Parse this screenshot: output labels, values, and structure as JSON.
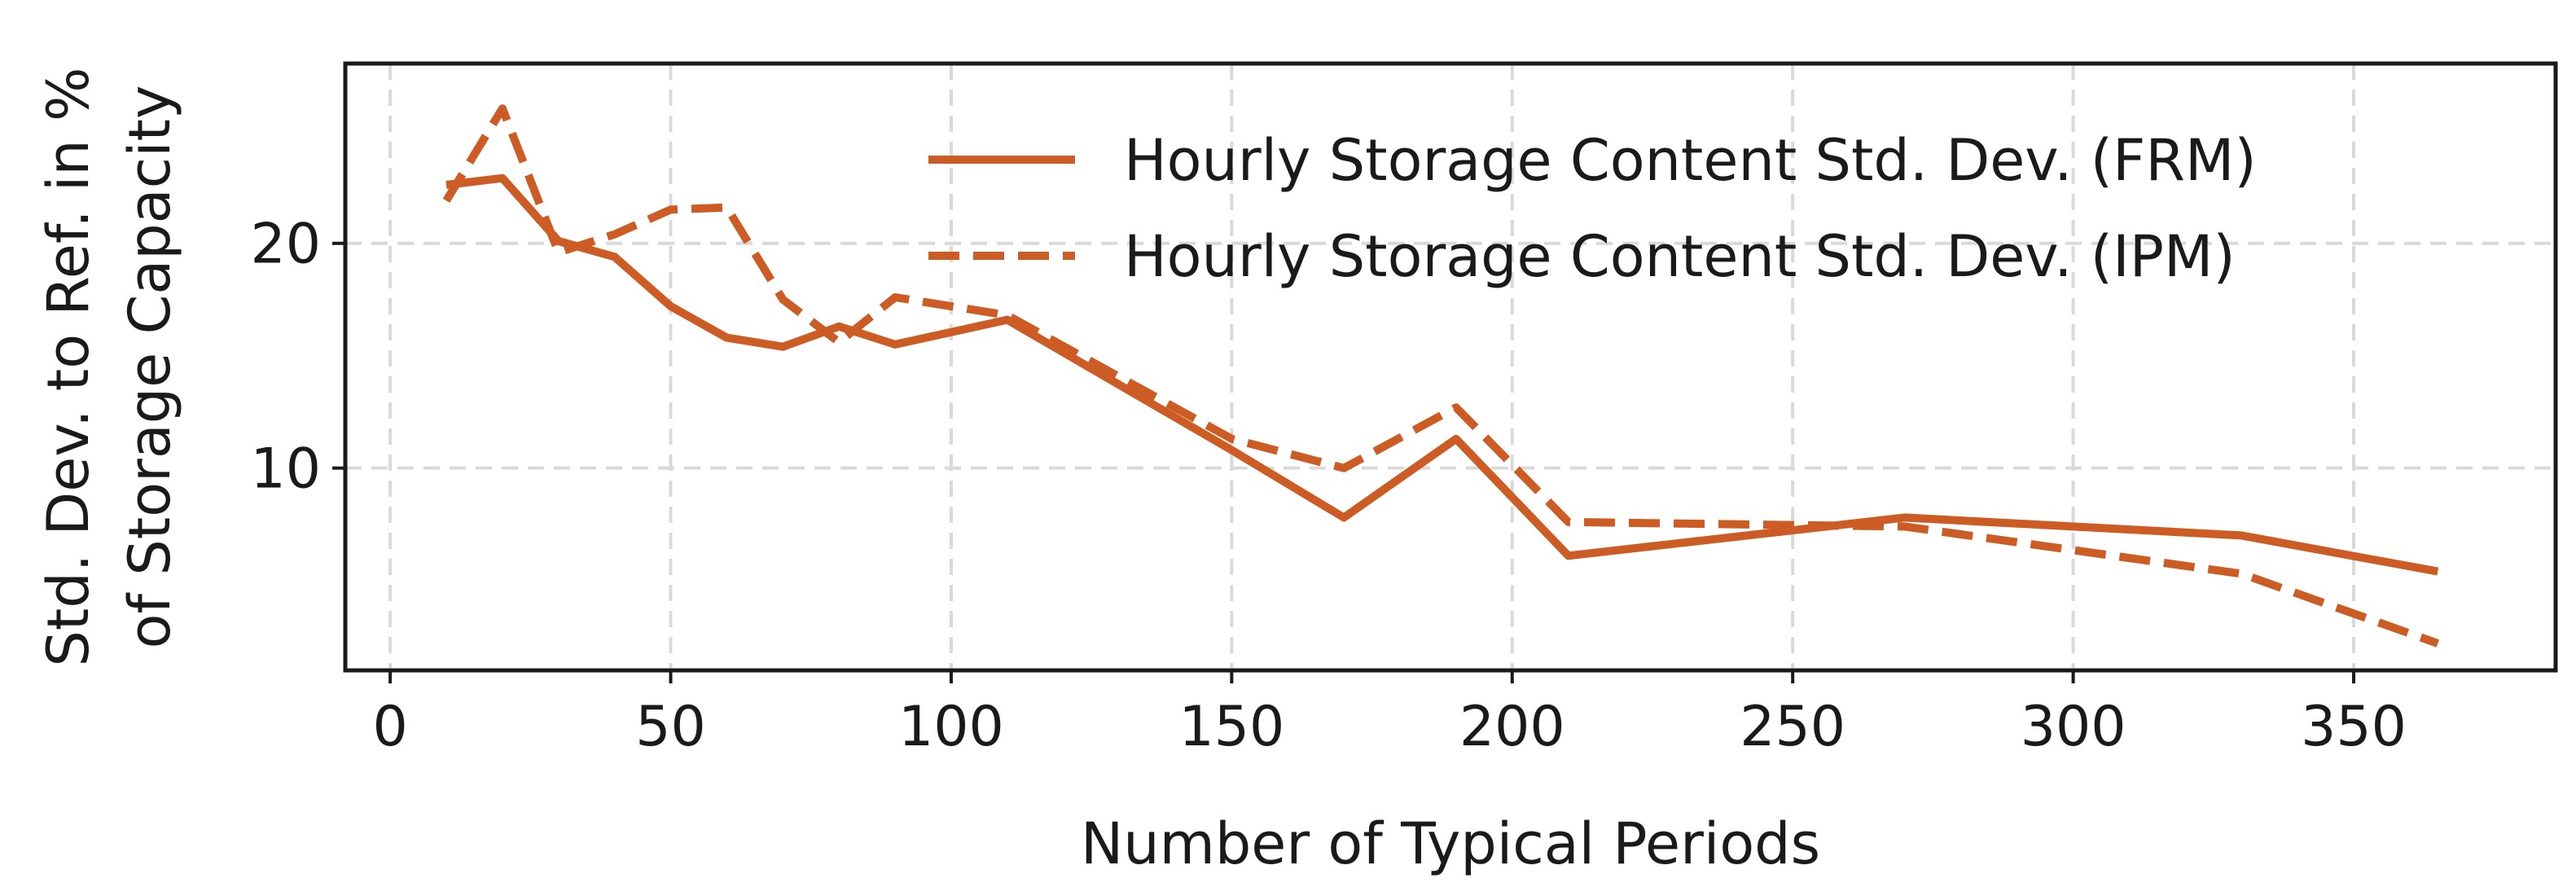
{
  "chart_data": {
    "type": "line",
    "xlabel": "Number of Typical Periods",
    "ylabel_lines": [
      "Std. Dev. to Ref. in %",
      "of Storage Capacity"
    ],
    "xlim": [
      -8,
      386
    ],
    "ylim": [
      1,
      28
    ],
    "xticks": [
      0,
      50,
      100,
      150,
      200,
      250,
      300,
      350
    ],
    "yticks": [
      10,
      20
    ],
    "grid": true,
    "legend_position": "upper-right",
    "color": "#cd5c24",
    "series": [
      {
        "name": "Hourly Storage Content Std. Dev. (FRM)",
        "style": "solid",
        "x": [
          10,
          20,
          30,
          40,
          50,
          60,
          70,
          80,
          90,
          110,
          150,
          170,
          190,
          210,
          270,
          330,
          365
        ],
        "y": [
          22.6,
          22.9,
          20.1,
          19.4,
          17.2,
          15.8,
          15.4,
          16.3,
          15.5,
          16.6,
          10.8,
          7.8,
          11.3,
          6.1,
          7.8,
          7.0,
          5.4
        ]
      },
      {
        "name": "Hourly Storage Content Std. Dev. (IPM)",
        "style": "dashed",
        "x": [
          10,
          20,
          30,
          40,
          50,
          60,
          70,
          80,
          90,
          110,
          150,
          170,
          190,
          210,
          270,
          330,
          365
        ],
        "y": [
          21.9,
          26.0,
          19.6,
          20.4,
          21.5,
          21.6,
          17.5,
          15.6,
          17.6,
          16.8,
          11.3,
          10.0,
          12.7,
          7.6,
          7.4,
          5.3,
          2.2
        ]
      }
    ]
  }
}
